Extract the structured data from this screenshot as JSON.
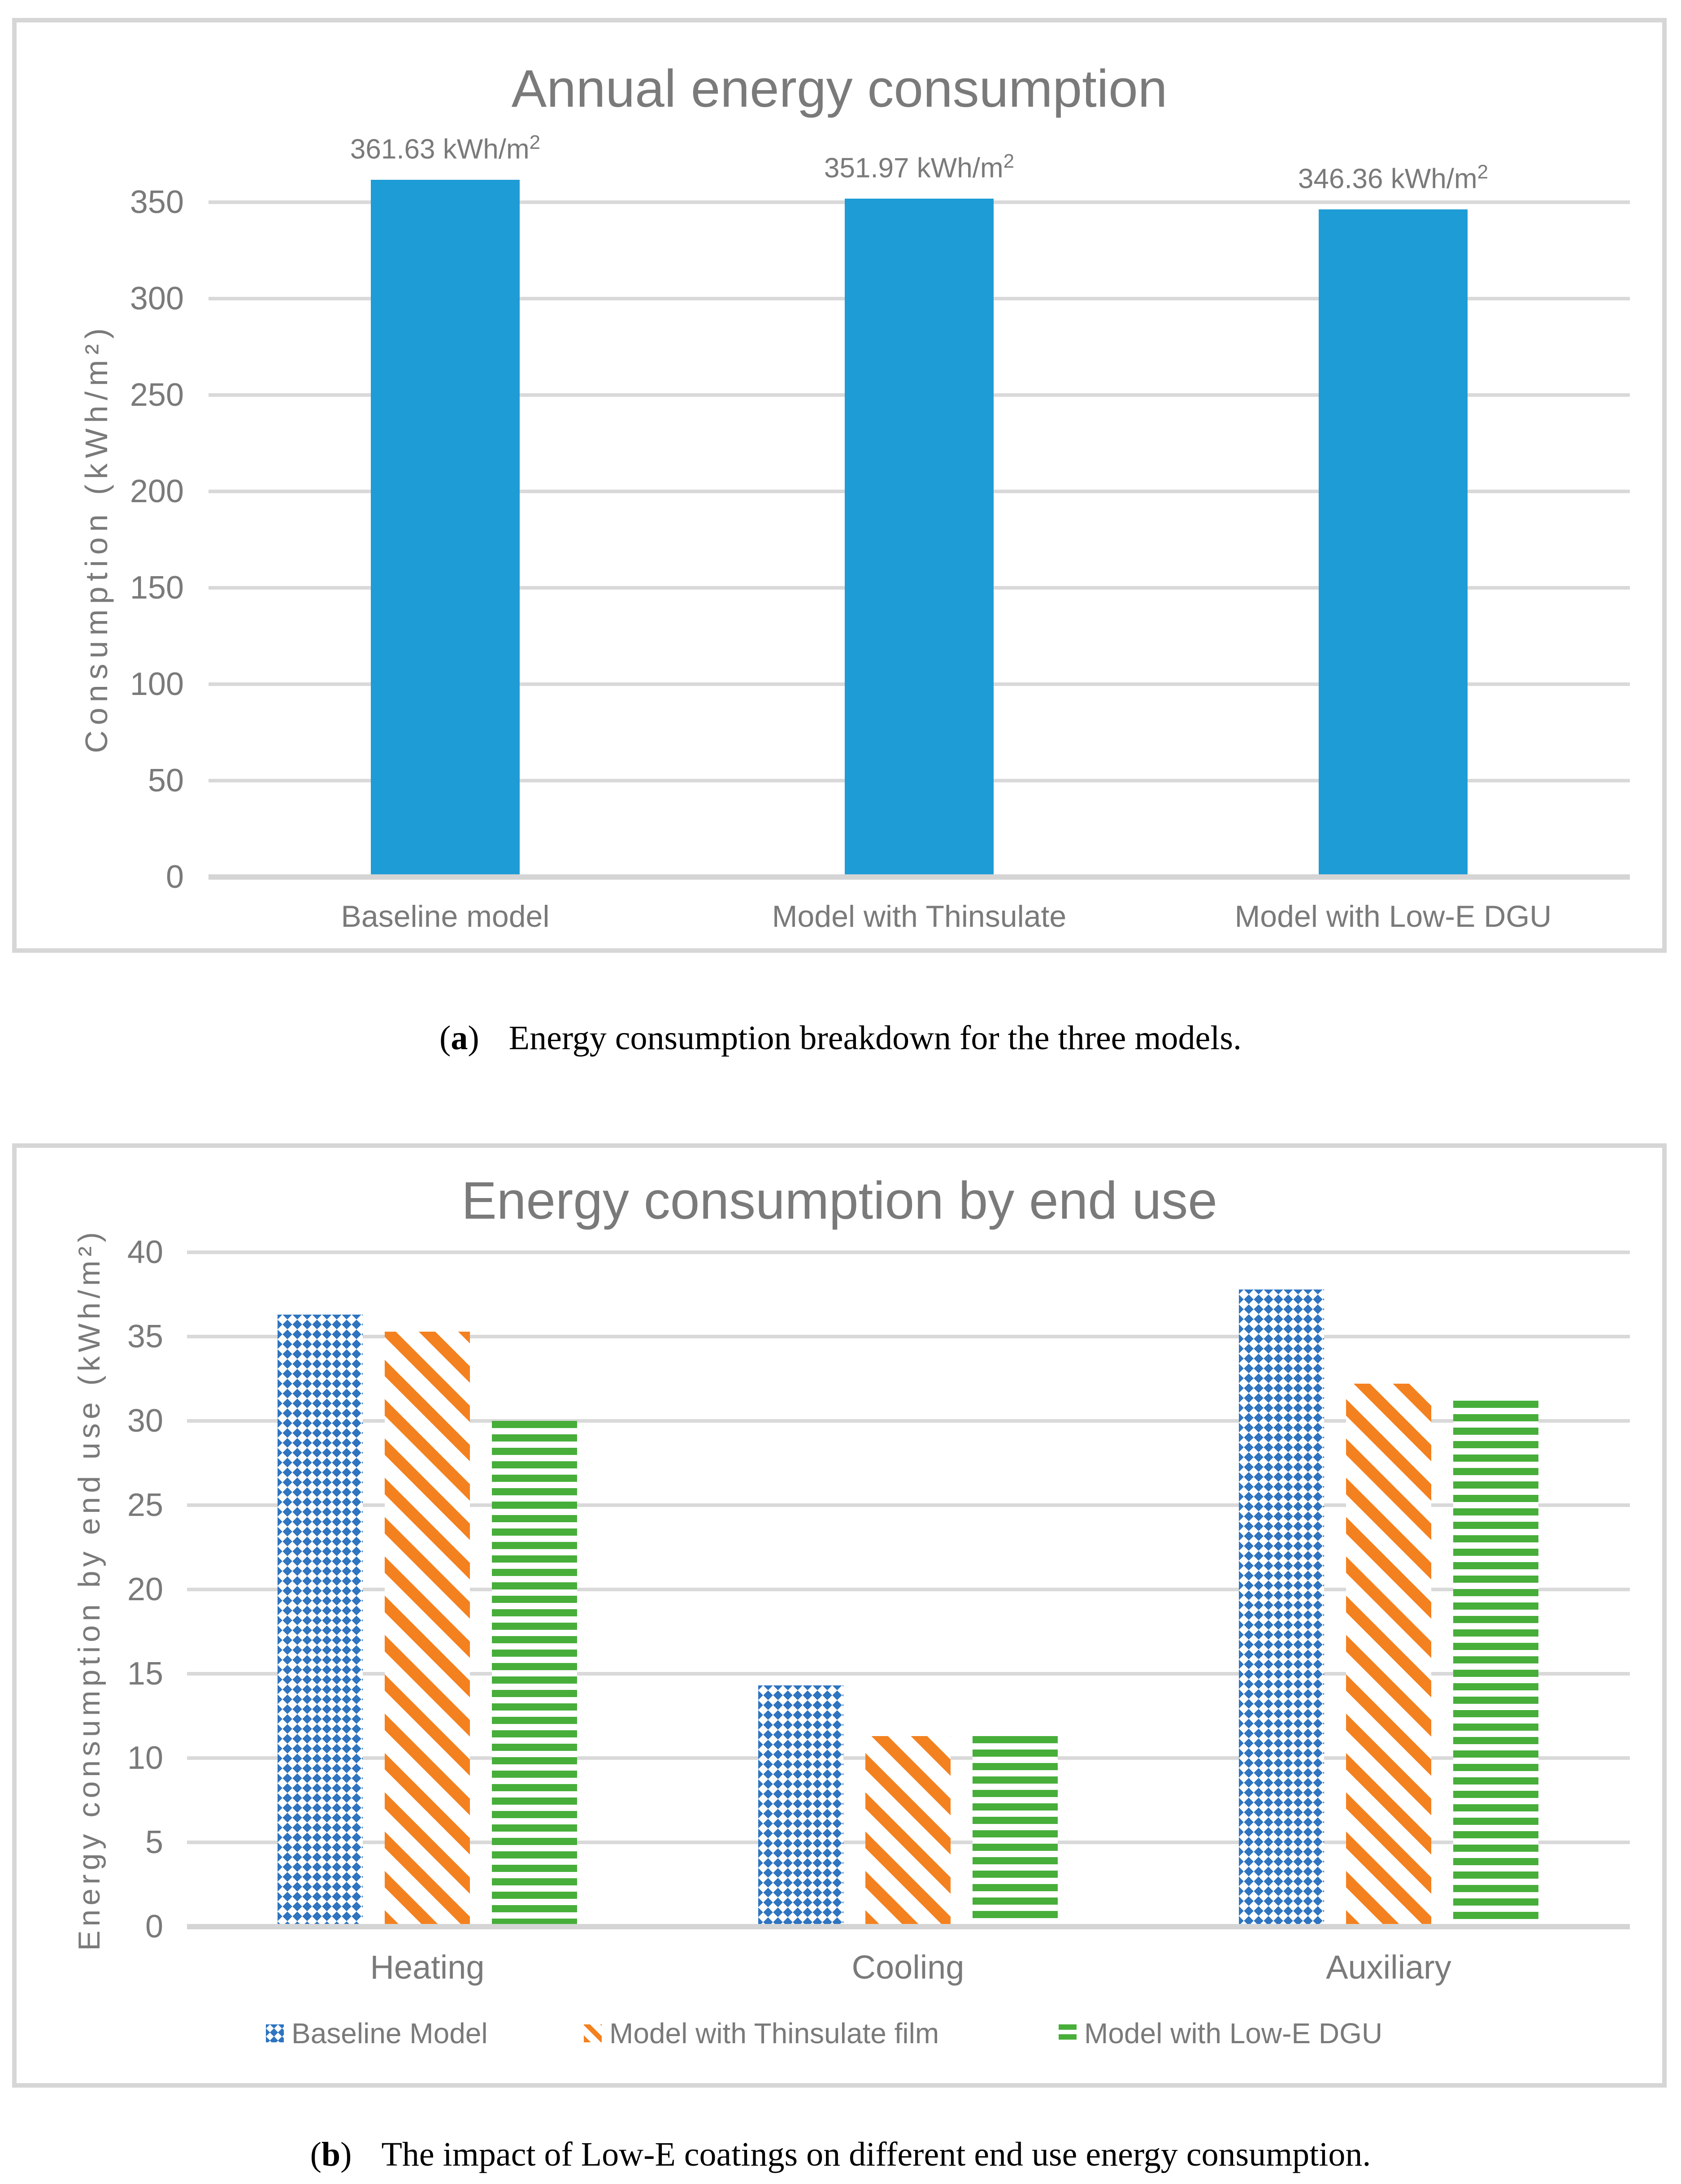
{
  "theme": {
    "grid_color": "#d9d9d9",
    "frame_color": "#d6d6d6",
    "text_color": "#7a7a7a",
    "bar_blue": "#1e9cd6",
    "pattern_blue": "#2e74c0",
    "pattern_orange": "#f4811f",
    "pattern_green": "#47ae3a"
  },
  "chart_data": [
    {
      "type": "bar",
      "title": "Annual energy consumption",
      "xlabel": "",
      "ylabel": "Consumption (kWh/m²)",
      "categories": [
        "Baseline model",
        "Model with Thinsulate",
        "Model with Low-E DGU"
      ],
      "values": [
        361.63,
        351.97,
        346.36
      ],
      "data_labels": [
        {
          "text": "361.63 kWh/m",
          "sup": "2"
        },
        {
          "text": "351.97 kWh/m",
          "sup": "2"
        },
        {
          "text": "346.36 kWh/m",
          "sup": "2"
        }
      ],
      "y_ticks": [
        0,
        50,
        100,
        150,
        200,
        250,
        300,
        350
      ],
      "ylim": [
        0,
        375
      ],
      "grid": true,
      "legend_position": "none",
      "bar_color": "#1e9cd6"
    },
    {
      "type": "bar",
      "title": "Energy consumption by end use",
      "xlabel": "",
      "ylabel": "Energy consumption by end use (kWh/m²)",
      "categories": [
        "Heating",
        "Cooling",
        "Auxiliary"
      ],
      "series": [
        {
          "name": "Baseline Model",
          "values": [
            36.3,
            14.3,
            37.8
          ],
          "color": "#2e74c0",
          "pattern": "diamond"
        },
        {
          "name": "Model with Thinsulate film",
          "values": [
            35.3,
            11.3,
            32.2
          ],
          "color": "#f4811f",
          "pattern": "diagonal-stripes"
        },
        {
          "name": "Model with Low-E DGU",
          "values": [
            30.0,
            11.3,
            31.2
          ],
          "color": "#47ae3a",
          "pattern": "horizontal-stripes"
        }
      ],
      "y_ticks": [
        0,
        5,
        10,
        15,
        20,
        25,
        30,
        35,
        40
      ],
      "ylim": [
        0,
        42
      ],
      "grid": true,
      "legend_position": "bottom"
    }
  ],
  "captions": {
    "a": {
      "open": "(",
      "letter": "a",
      "close": ")",
      "text": "Energy consumption breakdown for the three models."
    },
    "b": {
      "open": "(",
      "letter": "b",
      "close": ")",
      "text": "The impact of Low-E coatings on different end use energy consumption."
    }
  }
}
